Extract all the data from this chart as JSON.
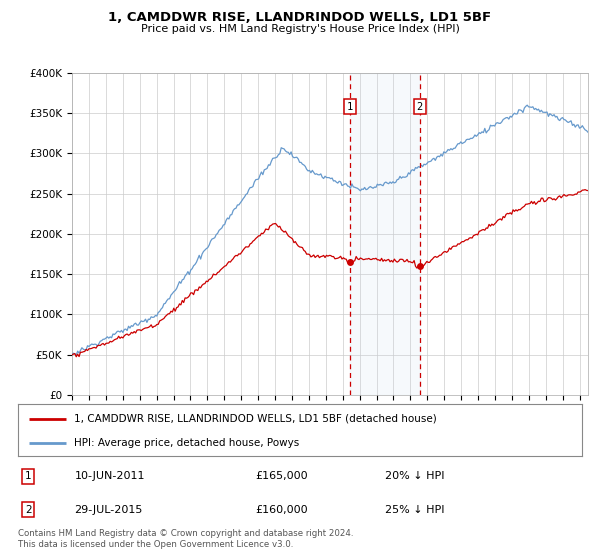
{
  "title": "1, CAMDDWR RISE, LLANDRINDOD WELLS, LD1 5BF",
  "subtitle": "Price paid vs. HM Land Registry's House Price Index (HPI)",
  "ylim": [
    0,
    400000
  ],
  "xlim_start": 1995.0,
  "xlim_end": 2025.5,
  "red_line_label": "1, CAMDDWR RISE, LLANDRINDOD WELLS, LD1 5BF (detached house)",
  "blue_line_label": "HPI: Average price, detached house, Powys",
  "transaction1": {
    "label": "1",
    "date": "10-JUN-2011",
    "price": "£165,000",
    "hpi_diff": "20% ↓ HPI",
    "year": 2011.44
  },
  "transaction2": {
    "label": "2",
    "date": "29-JUL-2015",
    "price": "£160,000",
    "hpi_diff": "25% ↓ HPI",
    "year": 2015.56
  },
  "footer": "Contains HM Land Registry data © Crown copyright and database right 2024.\nThis data is licensed under the Open Government Licence v3.0.",
  "background_color": "#ffffff",
  "grid_color": "#cccccc",
  "red_color": "#cc0000",
  "blue_color": "#6699cc",
  "shade_color": "#ddeeff",
  "marker_box_color": "#cc0000",
  "yticks": [
    0,
    50000,
    100000,
    150000,
    200000,
    250000,
    300000,
    350000,
    400000
  ],
  "ylabels": [
    "£0",
    "£50K",
    "£100K",
    "£150K",
    "£200K",
    "£250K",
    "£300K",
    "£350K",
    "£400K"
  ]
}
